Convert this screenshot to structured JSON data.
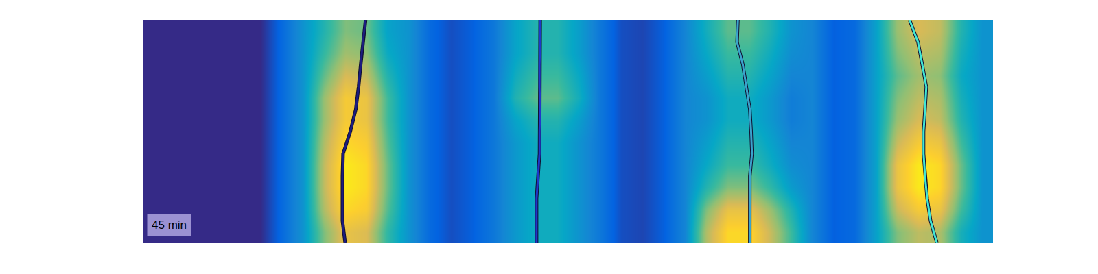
{
  "chart_data": {
    "type": "heatmap",
    "label": "45 min",
    "tick_labels": false,
    "xlim": [
      0,
      40
    ],
    "ylim": [
      10,
      0
    ],
    "zlim": [
      0,
      1
    ],
    "cells": [
      [
        0,
        0,
        0,
        0,
        0,
        0,
        0.15,
        0.3,
        0.45,
        0.6,
        0.57,
        0.36,
        0.3,
        0.15,
        0.08,
        0.12,
        0.2,
        0.36,
        0.45,
        0.45,
        0.34,
        0.2,
        0.08,
        0.06,
        0.12,
        0.25,
        0.41,
        0.55,
        0.55,
        0.44,
        0.3,
        0.25,
        0.12,
        0.15,
        0.35,
        0.64,
        0.75,
        0.71,
        0.45,
        0.3
      ],
      [
        0,
        0,
        0,
        0,
        0,
        0,
        0.15,
        0.3,
        0.49,
        0.65,
        0.62,
        0.39,
        0.3,
        0.15,
        0.08,
        0.12,
        0.2,
        0.36,
        0.45,
        0.45,
        0.34,
        0.2,
        0.08,
        0.06,
        0.12,
        0.25,
        0.38,
        0.5,
        0.5,
        0.4,
        0.28,
        0.25,
        0.12,
        0.15,
        0.35,
        0.6,
        0.7,
        0.67,
        0.42,
        0.3
      ],
      [
        0,
        0,
        0,
        0,
        0,
        0,
        0.15,
        0.3,
        0.56,
        0.75,
        0.71,
        0.45,
        0.3,
        0.15,
        0.08,
        0.12,
        0.2,
        0.4,
        0.5,
        0.5,
        0.38,
        0.2,
        0.08,
        0.06,
        0.12,
        0.25,
        0.34,
        0.45,
        0.45,
        0.36,
        0.25,
        0.25,
        0.12,
        0.15,
        0.35,
        0.55,
        0.65,
        0.62,
        0.39,
        0.3
      ],
      [
        0,
        0,
        0,
        0,
        0,
        0,
        0.15,
        0.3,
        0.64,
        0.85,
        0.81,
        0.51,
        0.3,
        0.15,
        0.08,
        0.12,
        0.2,
        0.44,
        0.55,
        0.55,
        0.41,
        0.2,
        0.08,
        0.06,
        0.12,
        0.25,
        0.3,
        0.4,
        0.4,
        0.32,
        0.22,
        0.25,
        0.12,
        0.15,
        0.35,
        0.6,
        0.7,
        0.67,
        0.42,
        0.3
      ],
      [
        0,
        0,
        0,
        0,
        0,
        0,
        0.15,
        0.3,
        0.64,
        0.85,
        0.81,
        0.51,
        0.3,
        0.15,
        0.08,
        0.12,
        0.2,
        0.36,
        0.45,
        0.45,
        0.34,
        0.2,
        0.08,
        0.06,
        0.12,
        0.25,
        0.3,
        0.4,
        0.4,
        0.32,
        0.22,
        0.25,
        0.12,
        0.15,
        0.35,
        0.64,
        0.75,
        0.71,
        0.45,
        0.3
      ],
      [
        0,
        0,
        0,
        0,
        0,
        0,
        0.15,
        0.3,
        0.68,
        0.9,
        0.86,
        0.54,
        0.3,
        0.15,
        0.08,
        0.12,
        0.2,
        0.32,
        0.4,
        0.4,
        0.3,
        0.2,
        0.08,
        0.06,
        0.12,
        0.25,
        0.34,
        0.45,
        0.45,
        0.36,
        0.25,
        0.25,
        0.12,
        0.15,
        0.35,
        0.72,
        0.85,
        0.81,
        0.51,
        0.3
      ],
      [
        0,
        0,
        0,
        0,
        0,
        0,
        0.15,
        0.3,
        0.71,
        0.95,
        0.9,
        0.57,
        0.3,
        0.15,
        0.08,
        0.12,
        0.2,
        0.32,
        0.4,
        0.4,
        0.3,
        0.2,
        0.08,
        0.06,
        0.12,
        0.25,
        0.38,
        0.5,
        0.5,
        0.4,
        0.28,
        0.25,
        0.12,
        0.15,
        0.35,
        0.81,
        0.95,
        0.9,
        0.57,
        0.3
      ],
      [
        0,
        0,
        0,
        0,
        0,
        0,
        0.15,
        0.3,
        0.71,
        0.95,
        0.9,
        0.57,
        0.3,
        0.15,
        0.08,
        0.12,
        0.2,
        0.32,
        0.4,
        0.4,
        0.3,
        0.2,
        0.08,
        0.06,
        0.12,
        0.25,
        0.45,
        0.6,
        0.6,
        0.48,
        0.33,
        0.25,
        0.12,
        0.15,
        0.35,
        0.81,
        0.95,
        0.9,
        0.57,
        0.3
      ],
      [
        0,
        0,
        0,
        0,
        0,
        0,
        0.15,
        0.3,
        0.68,
        0.9,
        0.86,
        0.54,
        0.3,
        0.15,
        0.08,
        0.12,
        0.2,
        0.32,
        0.4,
        0.4,
        0.3,
        0.2,
        0.08,
        0.06,
        0.12,
        0.25,
        0.6,
        0.8,
        0.8,
        0.64,
        0.44,
        0.25,
        0.12,
        0.15,
        0.35,
        0.72,
        0.85,
        0.81,
        0.51,
        0.3
      ],
      [
        0,
        0,
        0,
        0,
        0,
        0,
        0.15,
        0.3,
        0.6,
        0.8,
        0.76,
        0.48,
        0.3,
        0.15,
        0.08,
        0.12,
        0.2,
        0.32,
        0.4,
        0.4,
        0.3,
        0.2,
        0.08,
        0.06,
        0.12,
        0.25,
        0.68,
        0.9,
        0.9,
        0.72,
        0.5,
        0.25,
        0.12,
        0.15,
        0.35,
        0.6,
        0.7,
        0.67,
        0.42,
        0.3
      ]
    ],
    "series": [
      {
        "color": "#1c1c80",
        "y": [
          0,
          1,
          2,
          3,
          4,
          5,
          6,
          7,
          8,
          9,
          10
        ],
        "x": [
          10.46,
          10.33,
          10.23,
          10.13,
          10.0,
          9.74,
          9.4,
          9.37,
          9.37,
          9.37,
          9.5
        ]
      },
      {
        "color": "#1f36c8",
        "y": [
          0,
          1,
          2,
          3,
          4,
          5,
          6,
          7,
          8,
          9,
          10
        ],
        "x": [
          18.68,
          18.68,
          18.65,
          18.65,
          18.68,
          18.65,
          18.65,
          18.58,
          18.51,
          18.51,
          18.51
        ]
      },
      {
        "color": "#3aa3cc",
        "y": [
          0,
          1,
          2,
          3,
          4,
          5,
          6,
          7,
          8,
          9,
          10
        ],
        "x": [
          27.99,
          27.95,
          28.22,
          28.38,
          28.55,
          28.61,
          28.65,
          28.55,
          28.55,
          28.55,
          28.55
        ]
      },
      {
        "color": "#40e6d6",
        "y": [
          0,
          1,
          2,
          3,
          4,
          5,
          6,
          7,
          8,
          9,
          10
        ],
        "x": [
          36.07,
          36.47,
          36.67,
          36.86,
          36.8,
          36.73,
          36.73,
          36.8,
          36.9,
          37.06,
          37.36
        ]
      }
    ]
  }
}
